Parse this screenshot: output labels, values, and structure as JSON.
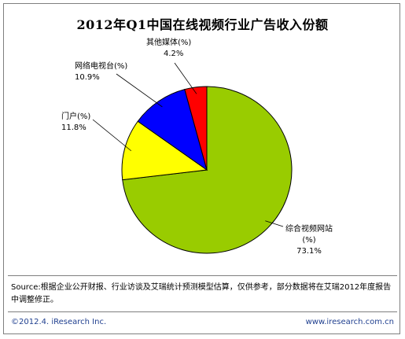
{
  "chart_data": {
    "type": "pie",
    "title": "2012年Q1中国在线视频行业广告收入份额",
    "slices": [
      {
        "name": "综合视频网站",
        "unit": "(%)",
        "value": 73.1,
        "value_label": "73.1%",
        "color": "#99cc00"
      },
      {
        "name": "门户",
        "unit": "(%)",
        "value": 11.8,
        "value_label": "11.8%",
        "color": "#ffff00"
      },
      {
        "name": "网络电视台",
        "unit": "(%)",
        "value": 10.9,
        "value_label": "10.9%",
        "color": "#0000ff"
      },
      {
        "name": "其他媒体",
        "unit": "(%)",
        "value": 4.2,
        "value_label": "4.2%",
        "color": "#ff0000"
      }
    ]
  },
  "source": "Source:根据企业公开财报、行业访谈及艾瑞统计预测模型估算，仅供参考，部分数据将在艾瑞2012年度报告中调整修正。",
  "footer": {
    "copyright": "©2012.4. iResearch Inc.",
    "website": "www.iresearch.com.cn"
  },
  "colors": {
    "frame": "#7f7f7f",
    "footer_text": "#1f3f8f"
  }
}
